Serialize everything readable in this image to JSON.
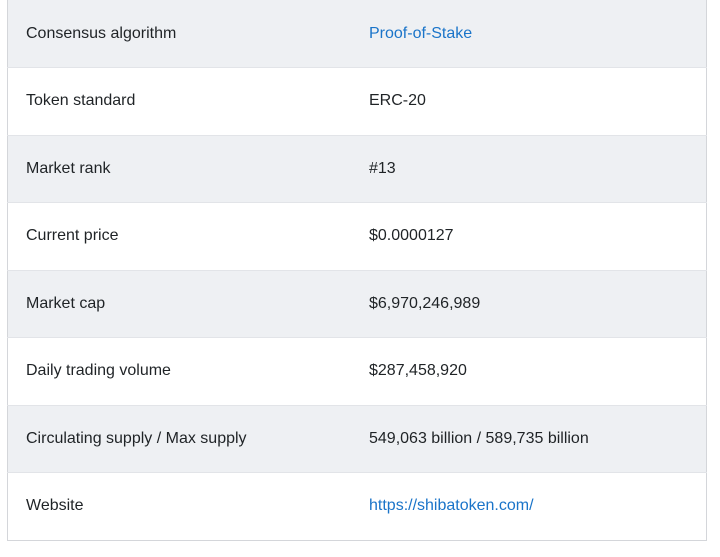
{
  "table": {
    "rows": [
      {
        "label": "Consensus algorithm",
        "value": "Proof-of-Stake",
        "is_link": true
      },
      {
        "label": "Token standard",
        "value": "ERC-20",
        "is_link": false
      },
      {
        "label": "Market rank",
        "value": "#13",
        "is_link": false
      },
      {
        "label": "Current price",
        "value": "$0.0000127",
        "is_link": false
      },
      {
        "label": "Market cap",
        "value": "$6,970,246,989",
        "is_link": false
      },
      {
        "label": "Daily trading volume",
        "value": "$287,458,920",
        "is_link": false
      },
      {
        "label": "Circulating supply / Max supply",
        "value": "549,063 billion / 589,735 billion",
        "is_link": false
      },
      {
        "label": "Website",
        "value": "https://shibatoken.com/",
        "is_link": true
      }
    ]
  },
  "colors": {
    "link": "#1a74c9",
    "text": "#1f2326",
    "row_shade": "#eef0f3",
    "border": "#d4d6da"
  }
}
